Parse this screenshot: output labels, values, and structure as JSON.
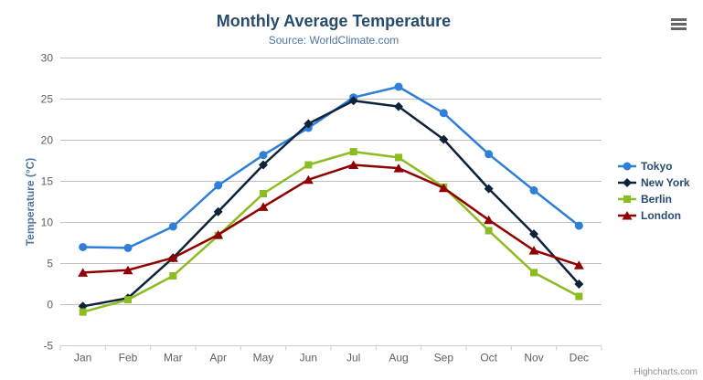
{
  "header": {
    "title": "Monthly Average Temperature",
    "subtitle": "Source: WorldClimate.com"
  },
  "context_menu": {
    "icon": "hamburger-icon"
  },
  "credits": {
    "label": "Highcharts.com"
  },
  "colors": {
    "title": "#274b6d",
    "subtitle": "#4d759e",
    "axis_labels": "#606060",
    "axis_line": "#c0d0e0",
    "gridline": "#c0c0c0",
    "legend_text": "#274b6d",
    "credits_text": "#909090"
  },
  "chart_data": {
    "type": "line",
    "title": "Monthly Average Temperature",
    "subtitle": "Source: WorldClimate.com",
    "categories": [
      "Jan",
      "Feb",
      "Mar",
      "Apr",
      "May",
      "Jun",
      "Jul",
      "Aug",
      "Sep",
      "Oct",
      "Nov",
      "Dec"
    ],
    "series": [
      {
        "name": "Tokyo",
        "color": "#2f7ed8",
        "marker": "circle",
        "values": [
          7.0,
          6.9,
          9.5,
          14.5,
          18.2,
          21.5,
          25.2,
          26.5,
          23.3,
          18.3,
          13.9,
          9.6
        ]
      },
      {
        "name": "New York",
        "color": "#0d233a",
        "marker": "diamond",
        "values": [
          -0.2,
          0.8,
          5.7,
          11.3,
          17.0,
          22.0,
          24.8,
          24.1,
          20.1,
          14.1,
          8.6,
          2.5
        ]
      },
      {
        "name": "Berlin",
        "color": "#8bbc21",
        "marker": "square",
        "values": [
          -0.9,
          0.6,
          3.5,
          8.4,
          13.5,
          17.0,
          18.6,
          17.9,
          14.3,
          9.0,
          3.9,
          1.0
        ]
      },
      {
        "name": "London",
        "color": "#910000",
        "marker": "triangle",
        "values": [
          3.9,
          4.2,
          5.7,
          8.5,
          11.9,
          15.2,
          17.0,
          16.6,
          14.2,
          10.3,
          6.6,
          4.8
        ]
      }
    ],
    "xlabel": "",
    "ylabel": "Temperature (°C)",
    "ylim": [
      -5,
      30
    ],
    "yticks": [
      -5,
      0,
      5,
      10,
      15,
      20,
      25,
      30
    ],
    "grid": true,
    "legend_position": "right"
  }
}
